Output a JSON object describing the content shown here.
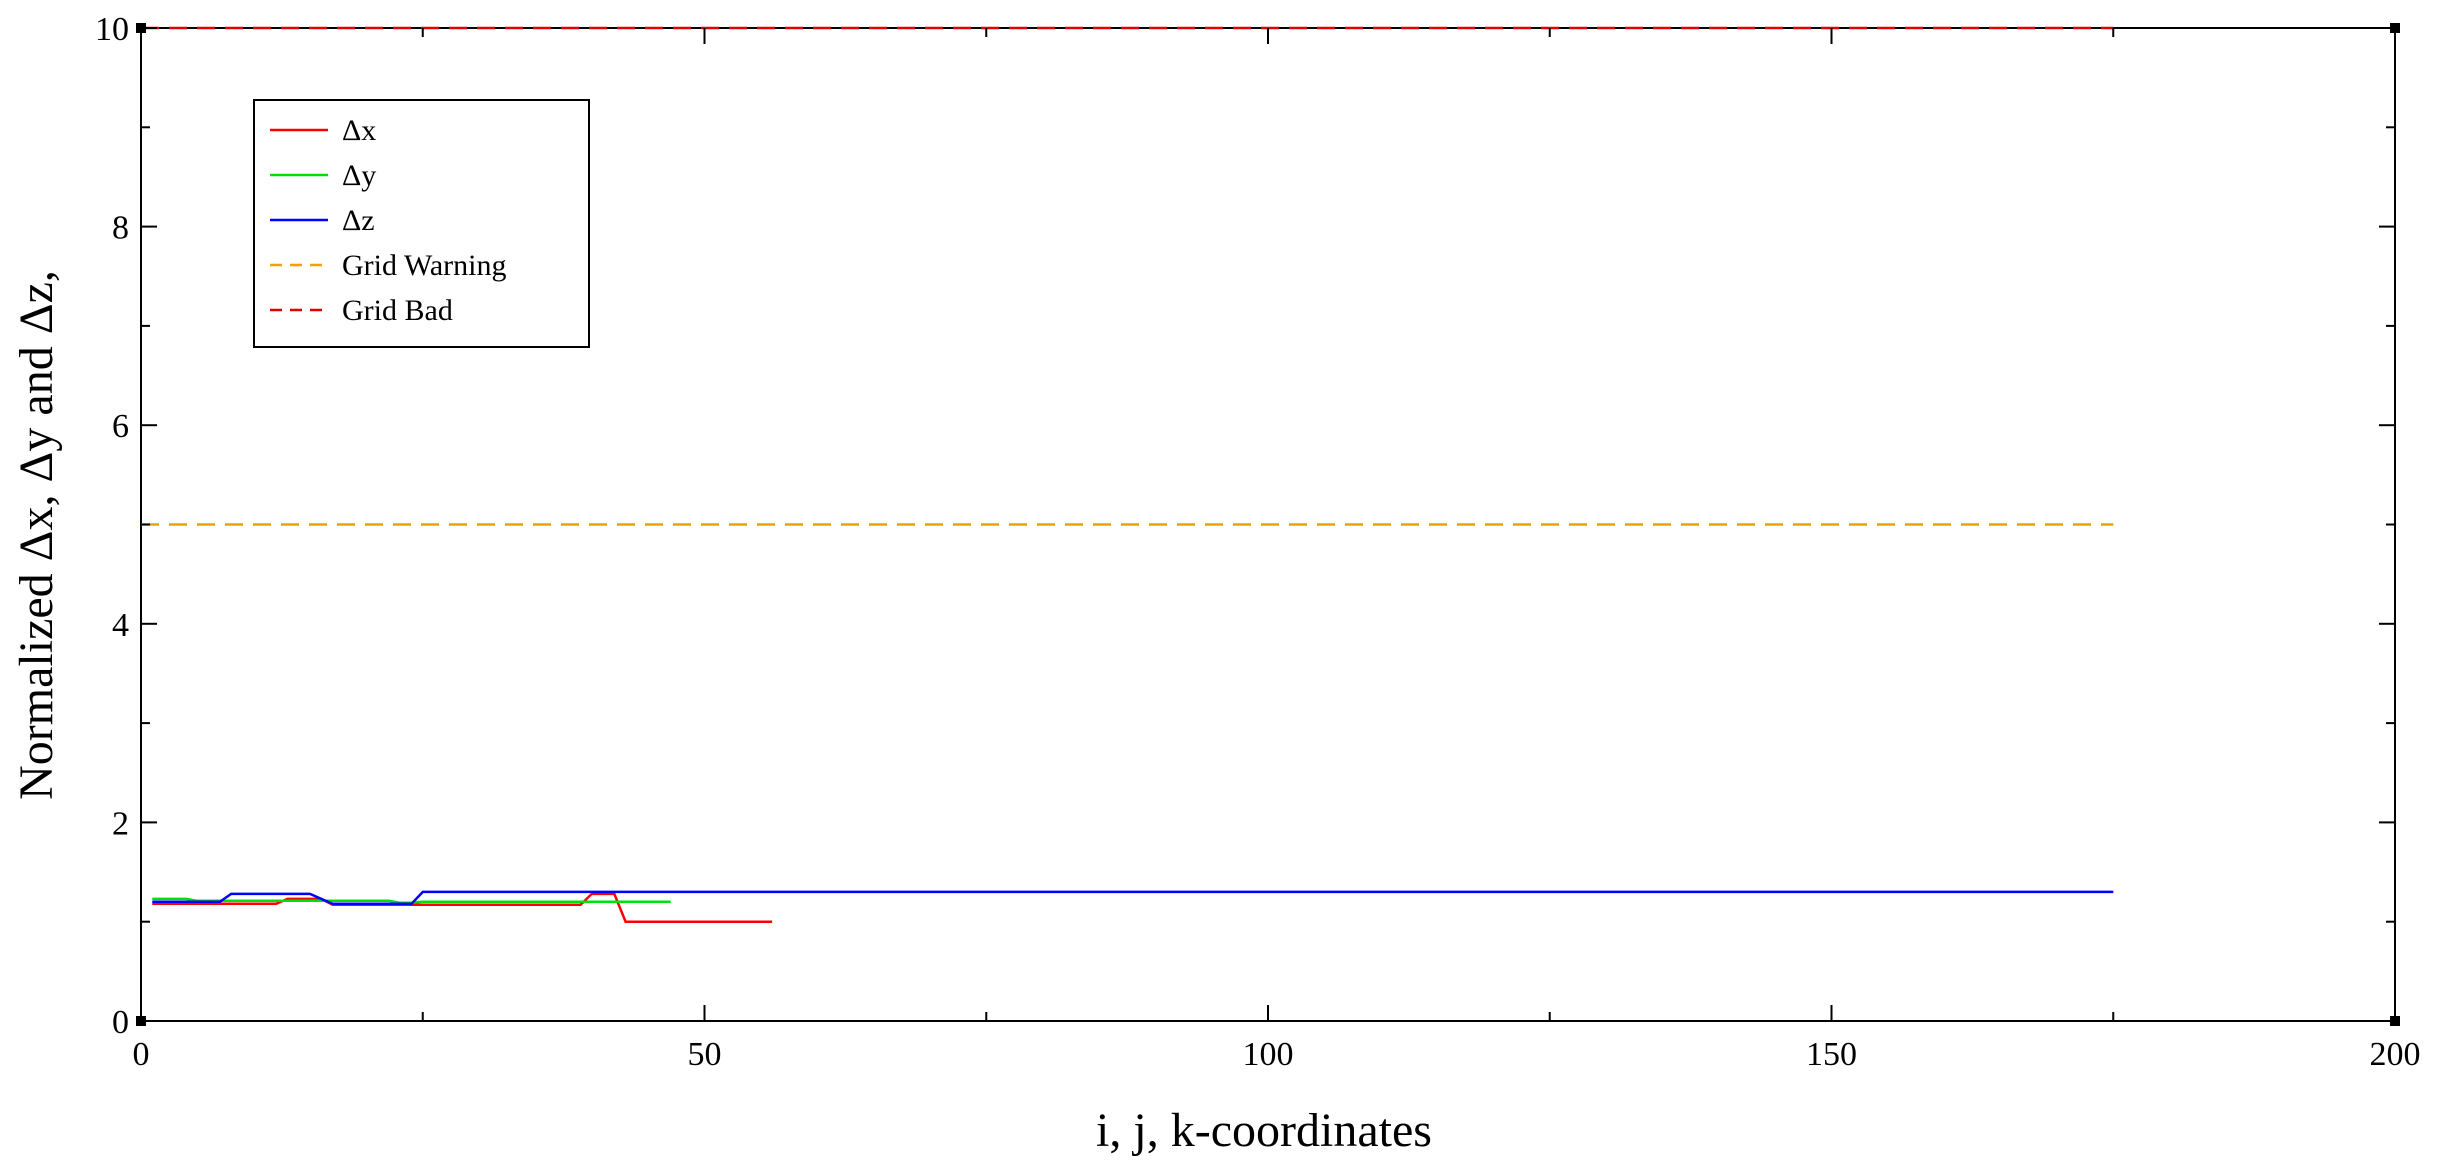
{
  "chart_data": {
    "type": "line",
    "title": "",
    "xlabel": "i, j, k-coordinates",
    "ylabel": "Normalized Δx, Δy and Δz,",
    "xlim": [
      0,
      200
    ],
    "ylim": [
      0,
      10
    ],
    "x_ticks": [
      0,
      50,
      100,
      150,
      200
    ],
    "x_tick_labels": [
      "0",
      "50",
      "100",
      "150",
      "200"
    ],
    "x_minor_step": 25,
    "y_ticks": [
      0,
      2,
      4,
      6,
      8,
      10
    ],
    "y_tick_labels": [
      "0",
      "2",
      "4",
      "6",
      "8",
      "10"
    ],
    "y_minor_step": 1,
    "grid": false,
    "legend_position": "top-left",
    "series": [
      {
        "name": "Δx",
        "color": "#ff0000",
        "dash": "solid",
        "x": [
          1,
          12,
          13,
          16,
          17,
          39,
          40,
          42,
          43,
          56
        ],
        "y": [
          1.18,
          1.18,
          1.23,
          1.23,
          1.17,
          1.17,
          1.28,
          1.28,
          1.0,
          1.0
        ]
      },
      {
        "name": "Δy",
        "color": "#00e000",
        "dash": "solid",
        "x": [
          1,
          4,
          5,
          22,
          23,
          24,
          25,
          47
        ],
        "y": [
          1.23,
          1.23,
          1.21,
          1.21,
          1.19,
          1.19,
          1.2,
          1.2
        ]
      },
      {
        "name": "Δz",
        "color": "#0000ff",
        "dash": "solid",
        "x": [
          1,
          7,
          8,
          15,
          16,
          17,
          24,
          25,
          175
        ],
        "y": [
          1.2,
          1.2,
          1.28,
          1.28,
          1.23,
          1.18,
          1.18,
          1.3,
          1.3
        ]
      },
      {
        "name": "Grid Warning",
        "color": "#f0a000",
        "dash": "dashed",
        "x": [
          0,
          175
        ],
        "y": [
          5,
          5
        ]
      },
      {
        "name": "Grid Bad",
        "color": "#e00000",
        "dash": "dashed",
        "x": [
          0,
          175
        ],
        "y": [
          10,
          10
        ]
      }
    ]
  }
}
